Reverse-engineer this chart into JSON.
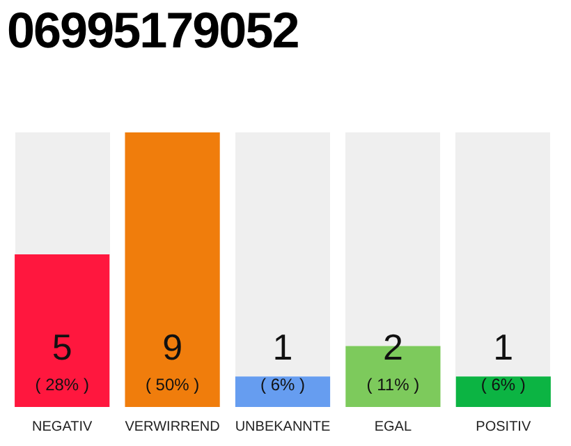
{
  "chart_data": {
    "type": "bar",
    "title": "06995179052",
    "categories": [
      "NEGATIV",
      "VERWIRREND",
      "UNBEKANNTE",
      "EGAL",
      "POSITIV"
    ],
    "values": [
      5,
      9,
      1,
      2,
      1
    ],
    "colors": [
      "#ff173e",
      "#f07d0c",
      "#669df0",
      "#7dca5c",
      "#0cb443"
    ],
    "value_labels": [
      "5\n( 28% )",
      "9\n( 50% )",
      "1\n( 6% )",
      "2\n( 11% )",
      "1\n( 6% )"
    ],
    "ylim": [
      0,
      9
    ],
    "tick_labels": "x",
    "grid": false,
    "legend": false
  }
}
